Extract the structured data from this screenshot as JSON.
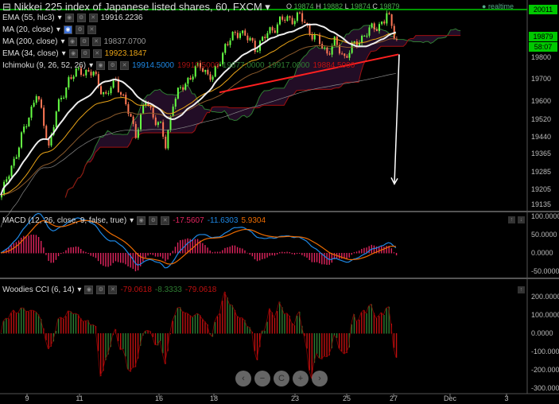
{
  "header": {
    "title": "Nikkei 225 index of Japanese listed shares, 60, FXCM",
    "ohlc": {
      "o_label": "O",
      "o": "19874",
      "h_label": "H",
      "h": "19882",
      "l_label": "L",
      "l": "19874",
      "c_label": "C",
      "c": "19879"
    },
    "realtime": "realtime"
  },
  "indicators": [
    {
      "label": "EMA (55, hlc3)",
      "value": "19916.2236",
      "color": "#dddddd"
    },
    {
      "label": "MA (20, close)",
      "value": "",
      "color": "#dddddd"
    },
    {
      "label": "MA (200, close)",
      "value": "19837.0700",
      "color": "#999999"
    },
    {
      "label": "EMA (34, close)",
      "value": "19923.1847",
      "color": "#e8a317"
    },
    {
      "label": "Ichimoku (9, 26, 52, 26)",
      "values": [
        "19914.5000",
        "19919.5000",
        "19877.0000",
        "19917.0000",
        "19884.5000"
      ],
      "colors": [
        "#1e88e5",
        "#a01010",
        "#2e7d32",
        "#2e7d32",
        "#c01010"
      ]
    }
  ],
  "macd": {
    "label": "MACD (12, 26, close, 9, false, true)",
    "values": [
      "-17.5607",
      "-11.6303",
      "5.9304"
    ],
    "colors": [
      "#e0245e",
      "#1e88e5",
      "#ef6c00"
    ]
  },
  "cci": {
    "label": "Woodies CCI (6, 14)",
    "values": [
      "-79.0618",
      "-8.3333",
      "-79.0618"
    ],
    "colors": [
      "#c01010",
      "#2e7d32",
      "#c01010"
    ]
  },
  "price_axis": {
    "labels": [
      "19800",
      "19700",
      "19600",
      "19520",
      "19440",
      "19365",
      "19285",
      "19205",
      "19135"
    ],
    "high_box": "20011",
    "last_box": "19879",
    "countdown": "58:07"
  },
  "macd_axis": {
    "labels": [
      "100.0000",
      "50.0000",
      "0.0000",
      "-50.0000"
    ]
  },
  "cci_axis": {
    "labels": [
      "200.0000",
      "100.0000",
      "0.0000",
      "-100.0000",
      "-200.0000",
      "-300.0000"
    ]
  },
  "time_axis": {
    "labels": [
      "9",
      "11",
      "16",
      "18",
      "23",
      "25",
      "27",
      "Dec",
      "3"
    ]
  },
  "nav": {
    "prev": "‹",
    "zoom_out": "−",
    "reset": "C",
    "zoom_in": "+",
    "next": "›"
  },
  "chart_data": {
    "type": "candlestick",
    "title": "Nikkei 225 index of Japanese listed shares, 60, FXCM",
    "bars": 160,
    "ylim": [
      19135,
      20011
    ],
    "close_anchors": [
      [
        0,
        19180
      ],
      [
        10,
        19500
      ],
      [
        14,
        19640
      ],
      [
        19,
        19400
      ],
      [
        22,
        19550
      ],
      [
        27,
        19700
      ],
      [
        32,
        19740
      ],
      [
        37,
        19720
      ],
      [
        42,
        19620
      ],
      [
        46,
        19700
      ],
      [
        51,
        19550
      ],
      [
        54,
        19460
      ],
      [
        58,
        19600
      ],
      [
        64,
        19480
      ],
      [
        66,
        19400
      ],
      [
        69,
        19600
      ],
      [
        75,
        19700
      ],
      [
        80,
        19760
      ],
      [
        85,
        19700
      ],
      [
        90,
        19850
      ],
      [
        96,
        19920
      ],
      [
        102,
        19840
      ],
      [
        112,
        19960
      ],
      [
        120,
        19980
      ],
      [
        125,
        19900
      ],
      [
        131,
        19820
      ],
      [
        134,
        19860
      ],
      [
        138,
        19800
      ],
      [
        146,
        19900
      ],
      [
        154,
        19960
      ],
      [
        155,
        19990
      ],
      [
        159,
        19879
      ]
    ],
    "trendline": {
      "from": [
        88,
        19640
      ],
      "to": [
        160,
        19810
      ],
      "color": "#ff2020"
    },
    "projection_arrow": {
      "from_price": 19810,
      "to_price": 19230,
      "color": "#ffffff"
    },
    "macd_ylim": [
      -60,
      110
    ],
    "cci_ylim": [
      -310,
      260
    ]
  }
}
